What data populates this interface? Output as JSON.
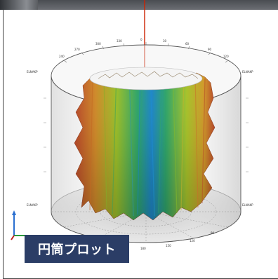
{
  "caption": {
    "label": "円筒プロット"
  },
  "viewport": {
    "rim_labels_top": [
      "300",
      "330",
      "0",
      "30",
      "60",
      "90",
      "120",
      "150",
      "180",
      "210",
      "240",
      "270"
    ],
    "rim_labels_bottom": [
      "240",
      "210",
      "180",
      "150",
      "120",
      "90"
    ],
    "side_labels_left": [
      "ELNAKP",
      "ELNAKP"
    ],
    "side_labels_right": [
      "ELNAKP",
      "ELNAKP"
    ],
    "colors": {
      "cylinder_outline": "#555555",
      "axis_line": "#cc2200",
      "surface_high": "#c0392b",
      "surface_mid": "#d4c020",
      "surface_low": "#1f8fd0",
      "caption_bg": "#2b3d66"
    },
    "axis_icon": "xyz-axis-triad-icon"
  }
}
